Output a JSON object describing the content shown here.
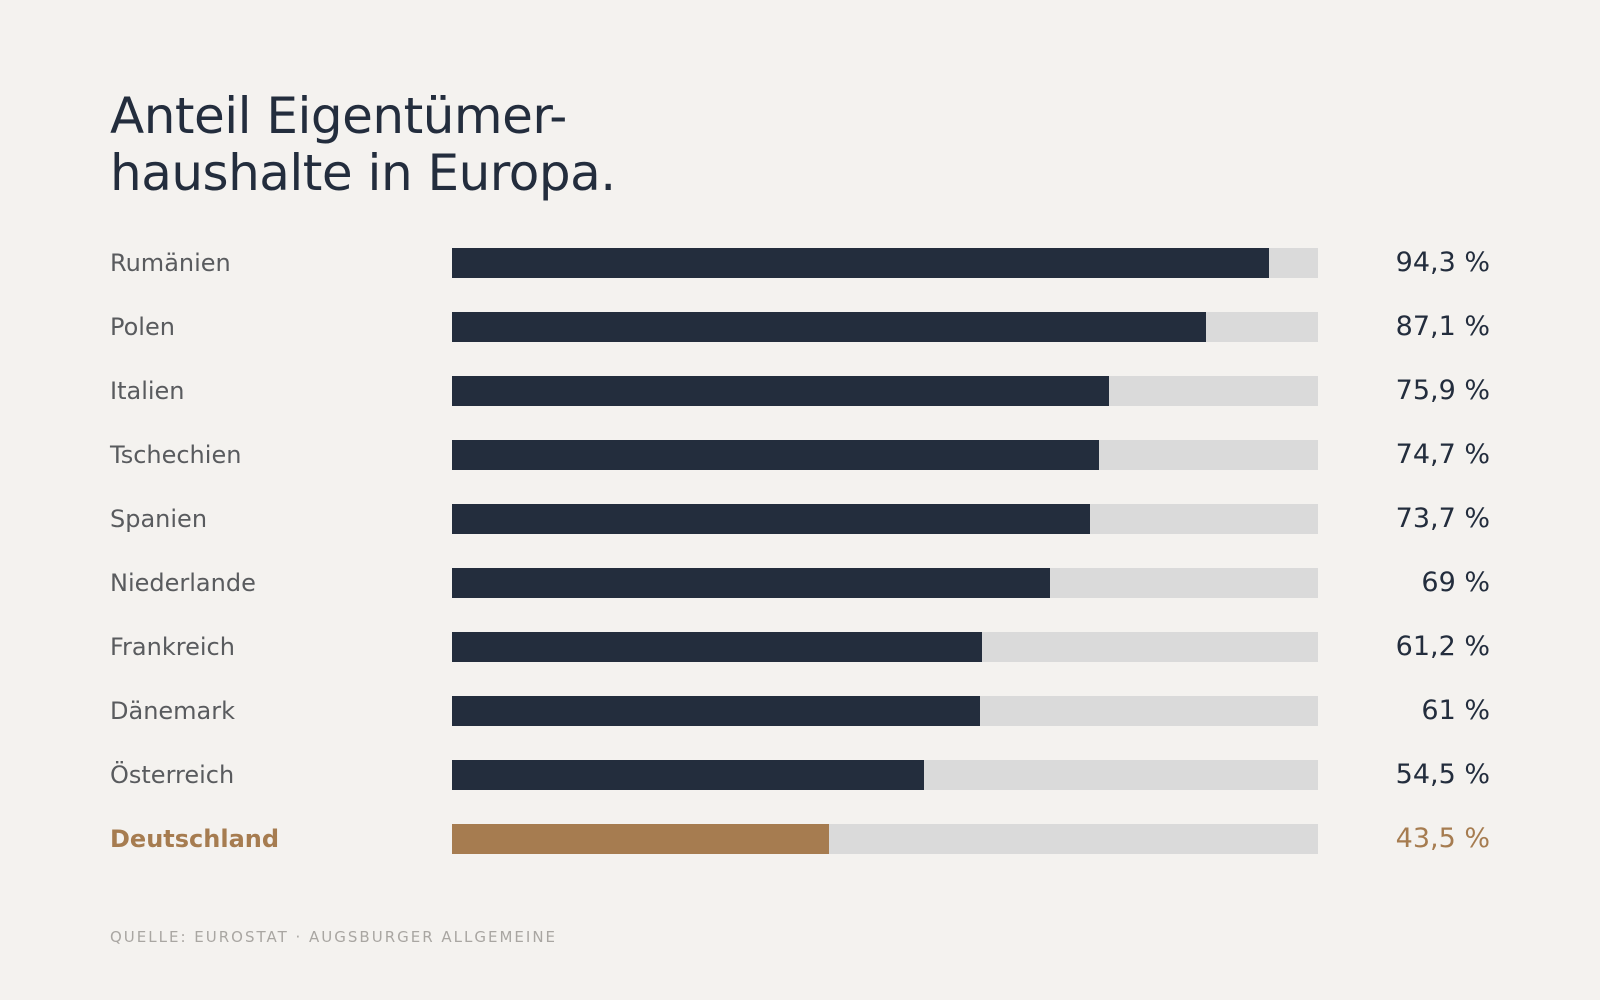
{
  "title_lines": [
    "Anteil Eigentümer-",
    "haushalte in Europa."
  ],
  "source": "QUELLE: EUROSTAT · AUGSBURGER ALLGEMEINE",
  "colors": {
    "background": "#f4f2ef",
    "bar": "#232d3d",
    "highlight": "#a67c50",
    "track": "#dadada",
    "label": "#595b5e"
  },
  "chart_data": {
    "type": "bar",
    "orientation": "horizontal",
    "title": "Anteil Eigentümer-haushalte in Europa.",
    "xlim": [
      0,
      100
    ],
    "grid": false,
    "highlight_category": "Deutschland",
    "categories": [
      "Rumänien",
      "Polen",
      "Italien",
      "Tschechien",
      "Spanien",
      "Niederlande",
      "Frankreich",
      "Dänemark",
      "Österreich",
      "Deutschland"
    ],
    "values": [
      94.3,
      87.1,
      75.9,
      74.7,
      73.7,
      69,
      61.2,
      61,
      54.5,
      43.5
    ],
    "value_labels": [
      "94,3 %",
      "87,1 %",
      "75,9 %",
      "74,7 %",
      "73,7 %",
      "69 %",
      "61,2 %",
      "61 %",
      "54,5 %",
      "43,5 %"
    ]
  }
}
